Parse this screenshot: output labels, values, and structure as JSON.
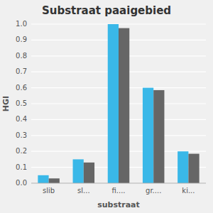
{
  "chart_data": {
    "type": "bar",
    "title": "Substraat paaigebied",
    "xlabel": "substraat",
    "ylabel": "HGI",
    "categories": [
      "slib",
      "sl...",
      "fi....",
      "gr....",
      "ki..."
    ],
    "series": [
      {
        "color": "#3ab8e8",
        "values": [
          0.05,
          0.15,
          1.0,
          0.6,
          0.2
        ]
      },
      {
        "color": "#666666",
        "values": [
          0.03,
          0.13,
          0.975,
          0.585,
          0.185
        ]
      }
    ],
    "ylim": [
      0.0,
      1.0
    ],
    "yticks": [
      {
        "value": 0.0,
        "label": "0.0"
      },
      0.1,
      0.2,
      0.3,
      0.4,
      0.5,
      0.6,
      0.7,
      0.8,
      0.9,
      {
        "value": 1.0,
        "label": "1.0"
      }
    ],
    "grid": true
  }
}
